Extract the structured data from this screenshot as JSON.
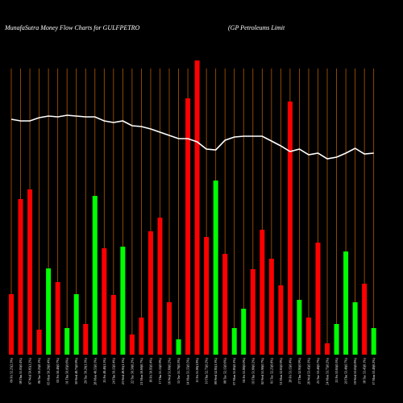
{
  "chart_data": {
    "type": "bar",
    "title": "MunafaSutra  Money Flow  Charts for GULFPETRO",
    "subtitle": "(GP Petroleums Limit",
    "categories": [
      "09 Fri 52.25(2.3%)",
      "08 Thu 51.05(0.4%)",
      "07 Wed 50.85(1.2%)",
      "06 Tue 50.25(0.1%)",
      "05 Mon 50.20(0.4%)",
      "02 Fri 50.40(0.7%)",
      "01 Thu 50.05(0.6%)",
      "30 Wed 49.75(0.9%)",
      "29 Tue 50.20(1.3%)",
      "28 Mon 49.55(0.3%)",
      "25 Fri 49.40(1.5%)",
      "24 Thu 50.15(0.4%)",
      "23 Wed 49.95(1.1%)",
      "22 Tue 50.50(0.2%)",
      "21 Mon 50.60(0.7%)",
      "18 Fri 50.95(0.4%)",
      "17 Thu 51.15(0.9%)",
      "16 Wed 51.60(0.2%)",
      "15 Tue 51.70(0.3%)",
      "14 Mon 51.55(0.5%)",
      "11 Fri 51.80(1.8%)",
      "10 Thu 52.75(0.2%)",
      "09 Wed 52.85(1.3%)",
      "08 Tue 52.15(0.6%)",
      "07 Mon 51.85(0.1%)",
      "04 Fri 51.80(0.0%)",
      "03 Thu 51.80(0.2%)",
      "02 Wed 51.90(0.7%)",
      "01 Tue 52.25(0.8%)",
      "31 Mon 52.65(0.9%)",
      "28 Fri 53.15(0.4%)",
      "27 Thu 52.95(0.9%)",
      "26 Wed 53.45(0.1%)",
      "25 Tue 53.40(0.7%)",
      "24 Mon 53.75(0.2%)",
      "21 Fri 53.65(0.5%)",
      "20 Thu 53.40(0.7%)",
      "19 Wed 53.05(0.8%)",
      "18 Tue 53.45(0.1%)",
      "17 Mon 53.40(0.2%)"
    ],
    "bars": {
      "values": [
        75,
        193,
        205,
        31,
        107,
        90,
        33,
        75,
        38,
        197,
        132,
        74,
        134,
        25,
        46,
        153,
        170,
        65,
        19,
        318,
        365,
        146,
        216,
        125,
        33,
        57,
        106,
        155,
        119,
        86,
        314,
        68,
        46,
        139,
        14,
        38,
        128,
        65,
        88,
        33
      ],
      "colors": [
        "#ff0000",
        "#ff0000",
        "#ff0000",
        "#ff0000",
        "#00ff00",
        "#ff0000",
        "#00ff00",
        "#00ff00",
        "#ff0000",
        "#00ff00",
        "#ff0000",
        "#ff0000",
        "#00ff00",
        "#ff0000",
        "#ff0000",
        "#ff0000",
        "#ff0000",
        "#ff0000",
        "#00ff00",
        "#ff0000",
        "#ff0000",
        "#ff0000",
        "#00ff00",
        "#ff0000",
        "#00ff00",
        "#00ff00",
        "#ff0000",
        "#ff0000",
        "#ff0000",
        "#ff0000",
        "#ff0000",
        "#00ff00",
        "#ff0000",
        "#ff0000",
        "#ff0000",
        "#00ff00",
        "#00ff00",
        "#00ff00",
        "#ff0000",
        "#00ff00"
      ]
    },
    "line": {
      "color": "#ffffff",
      "axis": "y2",
      "values": [
        292,
        290,
        290,
        294,
        296,
        295,
        297,
        296,
        295,
        295,
        290,
        288,
        290,
        284,
        283,
        280,
        276,
        272,
        268,
        268,
        264,
        255,
        254,
        266,
        270,
        271,
        271,
        271,
        265,
        259,
        252,
        255,
        248,
        250,
        243,
        245,
        250,
        256,
        249,
        250
      ]
    },
    "ylim": [
      0,
      370
    ],
    "y2lim": [
      0,
      370
    ],
    "grid_color": "#b35900"
  }
}
